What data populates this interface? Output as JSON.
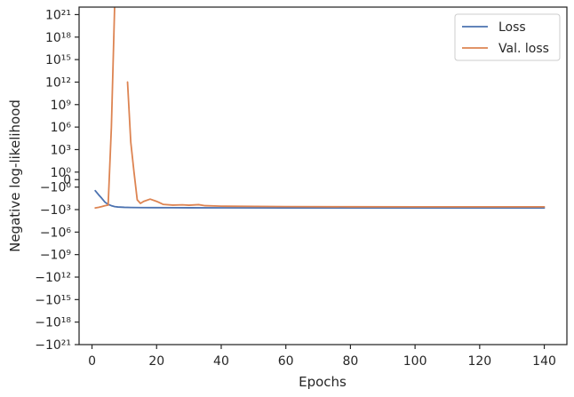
{
  "chart_data": {
    "type": "line",
    "title": "",
    "xlabel": "Epochs",
    "ylabel": "Negative log-likelihood",
    "xlim": [
      -4,
      147
    ],
    "xticks": [
      0,
      20,
      40,
      60,
      80,
      100,
      120,
      140
    ],
    "yscale": "symlog",
    "ylim": [
      -1e+21,
      1e+22
    ],
    "yticks": [
      {
        "value": 1e+21,
        "label": "10²¹"
      },
      {
        "value": 1e+18,
        "label": "10¹⁸"
      },
      {
        "value": 1000000000000000.0,
        "label": "10¹⁵"
      },
      {
        "value": 1000000000000.0,
        "label": "10¹²"
      },
      {
        "value": 1000000000.0,
        "label": "10⁹"
      },
      {
        "value": 1000000.0,
        "label": "10⁶"
      },
      {
        "value": 1000.0,
        "label": "10³"
      },
      {
        "value": 1,
        "label": "10⁰"
      },
      {
        "value": 0,
        "label": "0"
      },
      {
        "value": -1,
        "label": "−10⁰"
      },
      {
        "value": -1000.0,
        "label": "−10³"
      },
      {
        "value": -1000000.0,
        "label": "−10⁶"
      },
      {
        "value": -1000000000.0,
        "label": "−10⁹"
      },
      {
        "value": -1000000000000.0,
        "label": "−10¹²"
      },
      {
        "value": -1000000000000000.0,
        "label": "−10¹⁵"
      },
      {
        "value": -1e+18,
        "label": "−10¹⁸"
      },
      {
        "value": -1e+21,
        "label": "−10²¹"
      }
    ],
    "grid": false,
    "legend": "top-right",
    "series": [
      {
        "name": "Loss",
        "color": "#4c72b0",
        "x": [
          1,
          2,
          3,
          4,
          5,
          6,
          7,
          8,
          10,
          12,
          15,
          20,
          25,
          30,
          40,
          60,
          80,
          100,
          120,
          140
        ],
        "y": [
          -3,
          -10,
          -30,
          -100,
          -200,
          -300,
          -400,
          -450,
          -500,
          -520,
          -540,
          -550,
          -560,
          -570,
          -580,
          -590,
          -595,
          -600,
          -600,
          -600
        ]
      },
      {
        "name": "Val. loss",
        "color": "#dd8452",
        "segments": [
          {
            "x": [
              1,
              2,
              3,
              4,
              5,
              6,
              7,
              8
            ],
            "y": [
              -600,
              -500,
              -400,
              -300,
              -250,
              1000000.0,
              1e+22,
              1e+25
            ]
          },
          {
            "x": [
              11,
              12,
              13,
              14,
              15,
              16,
              18,
              20,
              22,
              25,
              28,
              30,
              33,
              35,
              40,
              60,
              80,
              100,
              120,
              140
            ],
            "y": [
              1000000000000.0,
              10000.0,
              1,
              -50,
              -150,
              -80,
              -40,
              -80,
              -200,
              -250,
              -230,
              -260,
              -220,
              -300,
              -350,
              -400,
              -420,
              -430,
              -430,
              -430
            ]
          }
        ]
      }
    ]
  }
}
